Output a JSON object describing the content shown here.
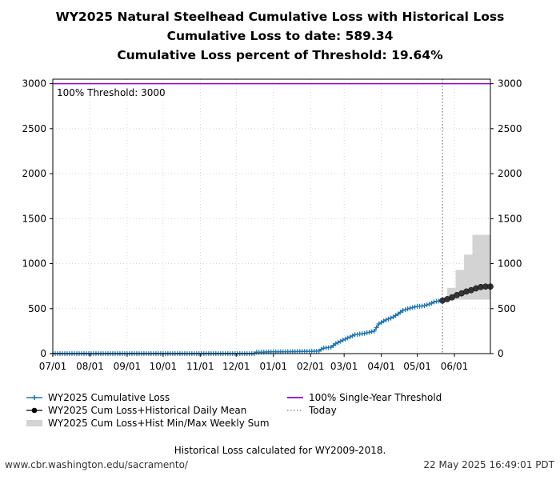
{
  "header": {
    "title_line1": "WY2025 Natural Steelhead Cumulative Loss with Historical Loss",
    "title_line2": "Cumulative Loss to date: 589.34",
    "title_line3": "Cumulative Loss percent of Threshold: 19.64%"
  },
  "footer": {
    "note": "Historical Loss calculated for WY2009-2018.",
    "source": "www.cbr.washington.edu/sacramento/",
    "timestamp": "22 May 2025 16:49:01 PDT"
  },
  "colors": {
    "cumulative": "#1f77b4",
    "historical_mean": "#000000",
    "minmax_fill": "#d3d3d3",
    "threshold": "#9400d3",
    "today": "#555555"
  },
  "chart_data": {
    "type": "line",
    "x_unit": "day-of-water-year (0 = Jul 01)",
    "xlim": [
      0,
      365
    ],
    "ylim": [
      0,
      3050
    ],
    "yticks": [
      0,
      500,
      1000,
      1500,
      2000,
      2500,
      3000
    ],
    "xtick_days": [
      0,
      31,
      62,
      92,
      123,
      153,
      184,
      215,
      243,
      274,
      304,
      335
    ],
    "xtick_labels": [
      "07/01",
      "08/01",
      "09/01",
      "10/01",
      "11/01",
      "12/01",
      "01/01",
      "02/01",
      "03/01",
      "04/01",
      "05/01",
      "06/01"
    ],
    "threshold": 3000,
    "threshold_annotation": "100% Threshold: 3000",
    "today_day": 325,
    "legend": {
      "cumulative": "WY2025 Cumulative Loss",
      "historical_mean": "WY2025 Cum Loss+Historical Daily Mean",
      "minmax": "WY2025 Cum Loss+Hist Min/Max Weekly Sum",
      "threshold": "100% Single-Year Threshold",
      "today": "Today"
    },
    "cumulative_loss": {
      "name": "WY2025 Cumulative Loss",
      "points": [
        [
          0,
          0
        ],
        [
          168,
          0
        ],
        [
          169,
          15
        ],
        [
          185,
          20
        ],
        [
          200,
          22
        ],
        [
          215,
          25
        ],
        [
          222,
          28
        ],
        [
          225,
          60
        ],
        [
          232,
          70
        ],
        [
          236,
          110
        ],
        [
          242,
          150
        ],
        [
          248,
          185
        ],
        [
          252,
          210
        ],
        [
          260,
          225
        ],
        [
          268,
          250
        ],
        [
          272,
          330
        ],
        [
          277,
          370
        ],
        [
          283,
          400
        ],
        [
          288,
          440
        ],
        [
          292,
          480
        ],
        [
          298,
          505
        ],
        [
          304,
          525
        ],
        [
          309,
          530
        ],
        [
          313,
          545
        ],
        [
          316,
          560
        ],
        [
          319,
          580
        ],
        [
          325,
          589.34
        ]
      ]
    },
    "historical_mean": {
      "name": "WY2025 Cum Loss+Historical Daily Mean",
      "points": [
        [
          325,
          589
        ],
        [
          329,
          605
        ],
        [
          333,
          625
        ],
        [
          337,
          650
        ],
        [
          341,
          670
        ],
        [
          345,
          690
        ],
        [
          349,
          705
        ],
        [
          353,
          725
        ],
        [
          357,
          740
        ],
        [
          361,
          745
        ],
        [
          365,
          745
        ]
      ]
    },
    "minmax_band": {
      "name": "WY2025 Cum Loss+Hist Min/Max Weekly Sum",
      "steps": [
        {
          "from": 325,
          "to": 329,
          "min": 589,
          "max": 620
        },
        {
          "from": 329,
          "to": 336,
          "min": 600,
          "max": 730
        },
        {
          "from": 336,
          "to": 343,
          "min": 600,
          "max": 930
        },
        {
          "from": 343,
          "to": 350,
          "min": 600,
          "max": 1100
        },
        {
          "from": 350,
          "to": 365,
          "min": 600,
          "max": 1320
        }
      ]
    }
  }
}
